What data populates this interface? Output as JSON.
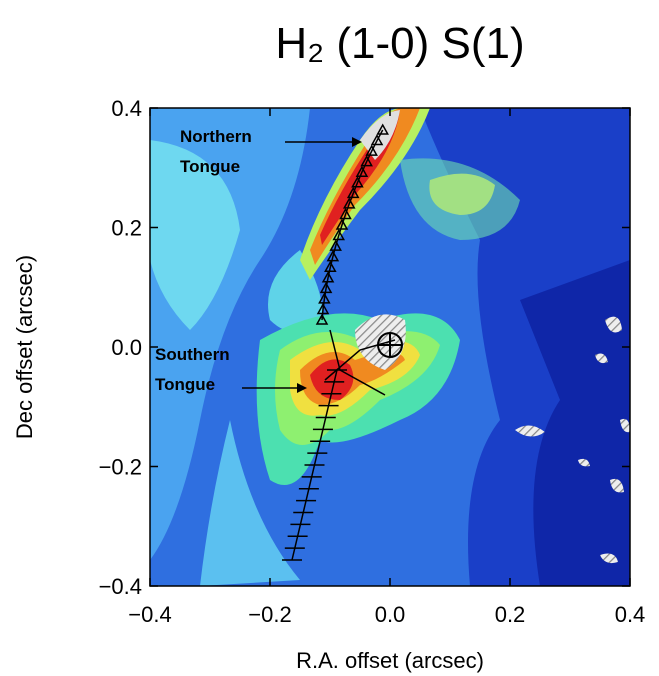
{
  "chart_data": {
    "type": "map",
    "title": "H₂ (1-0) S(1)",
    "xlabel": "R.A. offset (arcsec)",
    "ylabel": "Dec offset (arcsec)",
    "xlim": [
      -0.4,
      0.4
    ],
    "ylim": [
      -0.4,
      0.4
    ],
    "xticks": [
      {
        "value": -0.4,
        "label": "−0.4"
      },
      {
        "value": -0.2,
        "label": "−0.2"
      },
      {
        "value": 0,
        "label": "0.0"
      },
      0.2,
      0.4
    ],
    "yticks": [
      {
        "value": -0.4,
        "label": "−0.4"
      },
      {
        "value": -0.2,
        "label": "−0.2"
      },
      {
        "value": 0,
        "label": "0.0"
      },
      0.2,
      0.4
    ],
    "annotations": [
      [
        "Northern",
        "Tongue"
      ],
      [
        "Southern",
        "Tongue"
      ]
    ]
  }
}
